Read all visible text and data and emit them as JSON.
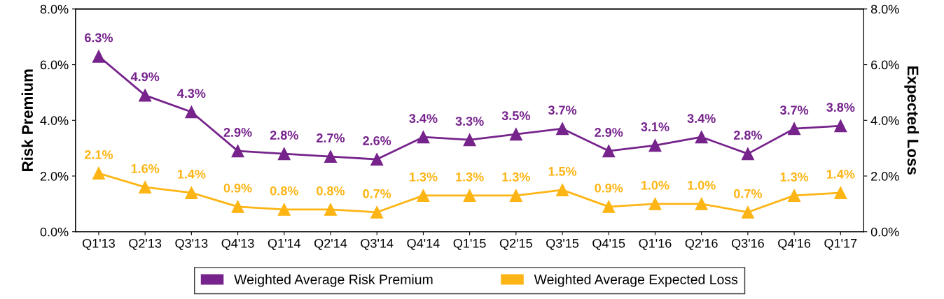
{
  "chart_data": {
    "type": "line",
    "ylabel": "Risk Premium",
    "y2label": "Expected Loss",
    "categories": [
      "Q1'13",
      "Q2'13",
      "Q3'13",
      "Q4'13",
      "Q1'14",
      "Q2'14",
      "Q3'14",
      "Q4'14",
      "Q1'15",
      "Q2'15",
      "Q3'15",
      "Q4'15",
      "Q1'16",
      "Q2'16",
      "Q3'16",
      "Q4'16",
      "Q1'17"
    ],
    "series": [
      {
        "name": "Weighted Average Risk Premium",
        "color": "#76238c",
        "values": [
          6.3,
          4.9,
          4.3,
          2.9,
          2.8,
          2.7,
          2.6,
          3.4,
          3.3,
          3.5,
          3.7,
          2.9,
          3.1,
          3.4,
          2.8,
          3.7,
          3.8
        ],
        "value_labels": [
          "6.3%",
          "4.9%",
          "4.3%",
          "2.9%",
          "2.8%",
          "2.7%",
          "2.6%",
          "3.4%",
          "3.3%",
          "3.5%",
          "3.7%",
          "2.9%",
          "3.1%",
          "3.4%",
          "2.8%",
          "3.7%",
          "3.8%"
        ]
      },
      {
        "name": "Weighted Average Expected Loss",
        "color": "#fdb515",
        "values": [
          2.1,
          1.6,
          1.4,
          0.9,
          0.8,
          0.8,
          0.7,
          1.3,
          1.3,
          1.3,
          1.5,
          0.9,
          1.0,
          1.0,
          0.7,
          1.3,
          1.4
        ],
        "value_labels": [
          "2.1%",
          "1.6%",
          "1.4%",
          "0.9%",
          "0.8%",
          "0.8%",
          "0.7%",
          "1.3%",
          "1.3%",
          "1.3%",
          "1.5%",
          "0.9%",
          "1.0%",
          "1.0%",
          "0.7%",
          "1.3%",
          "1.4%"
        ]
      }
    ],
    "ylim": [
      0,
      8
    ],
    "yticks": [
      {
        "value": 0,
        "label": "0.0%"
      },
      {
        "value": 2,
        "label": "2.0%"
      },
      {
        "value": 4,
        "label": "4.0%"
      },
      {
        "value": 6,
        "label": "6.0%"
      },
      {
        "value": 8,
        "label": "8.0%"
      }
    ],
    "y2lim": [
      0,
      8
    ],
    "y2ticks": [
      {
        "value": 0,
        "label": "0.0%"
      },
      {
        "value": 2,
        "label": "2.0%"
      },
      {
        "value": 4,
        "label": "4.0%"
      },
      {
        "value": 6,
        "label": "6.0%"
      },
      {
        "value": 8,
        "label": "8.0%"
      }
    ],
    "marker": "triangle",
    "line_style": "solid",
    "grid": false,
    "legend": "bottom"
  }
}
